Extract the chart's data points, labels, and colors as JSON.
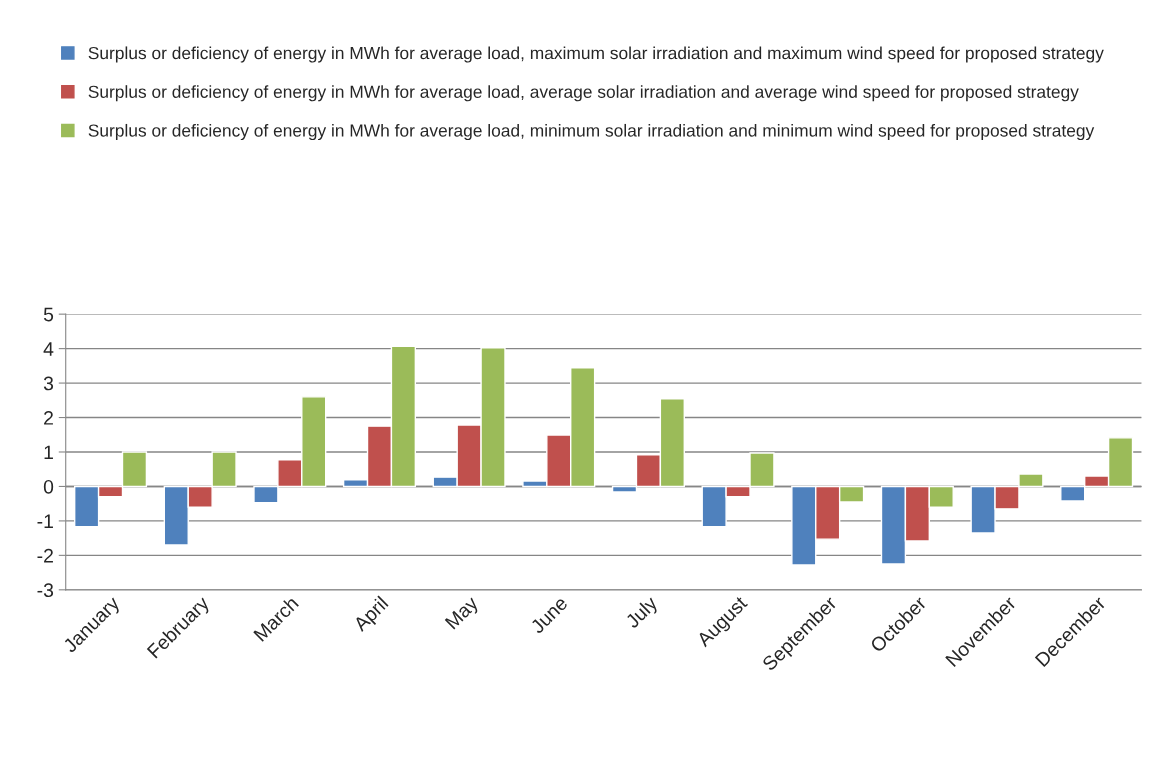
{
  "chart_data": {
    "type": "bar",
    "categories": [
      "January",
      "February",
      "March",
      "April",
      "May",
      "June",
      "July",
      "August",
      "September",
      "October",
      "November",
      "December"
    ],
    "series": [
      {
        "name": "Surplus or deficiency of energy in MWh for average load, maximum solar irradiation and maximum wind speed for proposed strategy",
        "color": "#4f81bd",
        "values": [
          -1.17,
          -1.7,
          -0.47,
          0.19,
          0.27,
          0.16,
          -0.16,
          -1.17,
          -2.28,
          -2.25,
          -1.35,
          -0.42
        ]
      },
      {
        "name": "Surplus or deficiency of energy in MWh for average load, average solar irradiation and average wind speed for proposed strategy",
        "color": "#c0504d",
        "values": [
          -0.3,
          -0.6,
          0.77,
          1.75,
          1.78,
          1.49,
          0.92,
          -0.3,
          -1.53,
          -1.58,
          -0.65,
          0.3
        ]
      },
      {
        "name": "Surplus or deficiency of energy in MWh for average load, minimum solar irradiation and minimum wind speed for proposed strategy",
        "color": "#9bbb59",
        "values": [
          1.0,
          1.0,
          2.6,
          4.07,
          4.02,
          3.44,
          2.54,
          0.97,
          -0.45,
          -0.6,
          0.36,
          1.41
        ]
      }
    ],
    "ylim": [
      -3,
      5
    ],
    "yticks": [
      -3,
      -2,
      -1,
      0,
      1,
      2,
      3,
      4,
      5
    ],
    "grid": "y",
    "legend": "top"
  }
}
